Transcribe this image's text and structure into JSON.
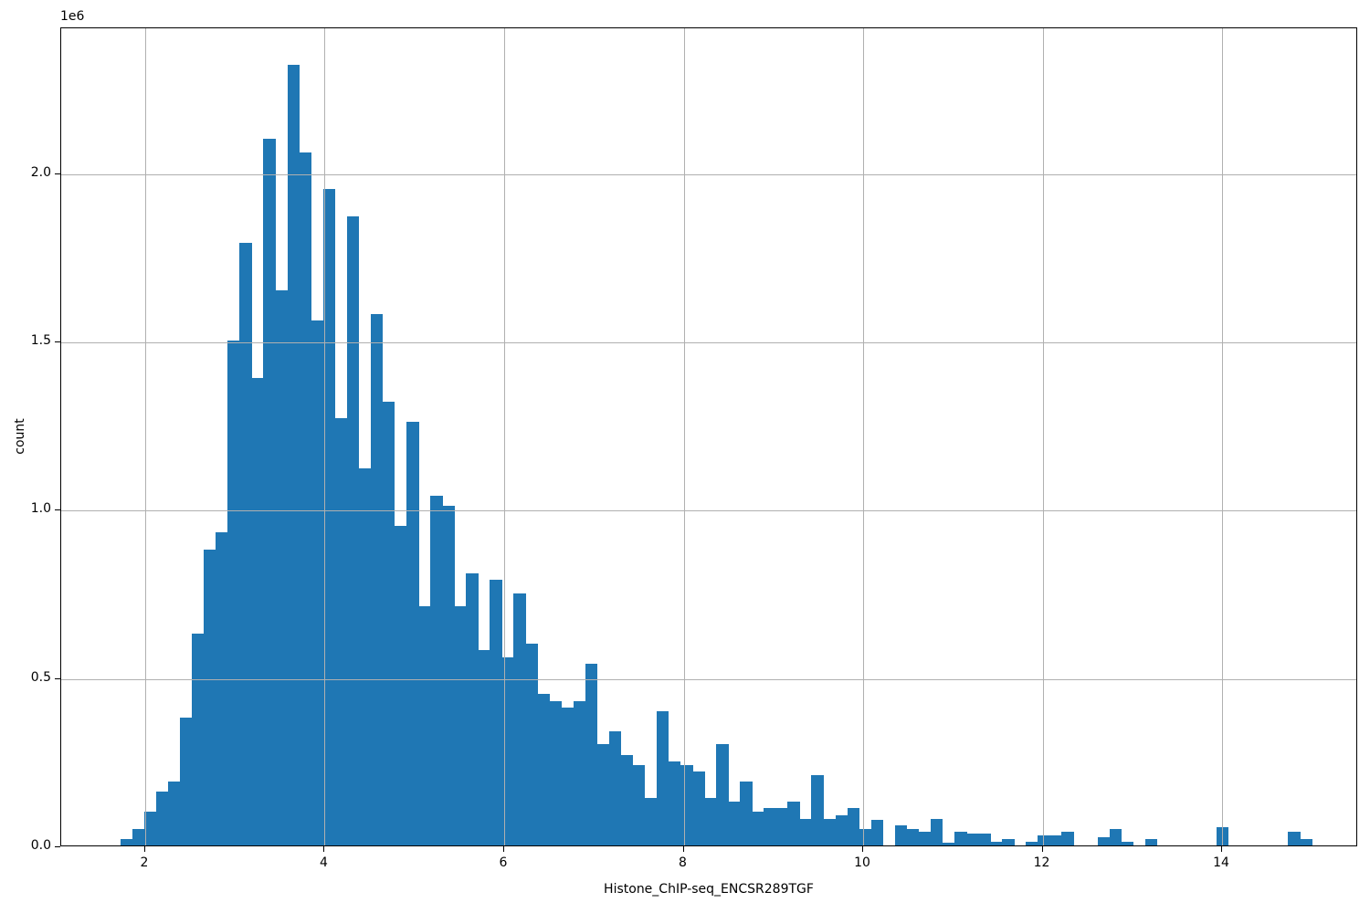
{
  "figure": {
    "background": "#ffffff",
    "bar_color": "#1f77b4",
    "grid_color": "#b0b0b0",
    "spine_color": "#000000",
    "text_color": "#000000"
  },
  "chart_data": {
    "type": "bar",
    "subtype": "histogram",
    "title": "",
    "xlabel": "Histone_ChIP-seq_ENCSR289TGF",
    "ylabel": "count",
    "y_offset_label": "1e6",
    "grid": true,
    "legend": false,
    "xlim": [
      1.064,
      15.516
    ],
    "ylim": [
      0,
      2434000
    ],
    "x_ticks": [
      2,
      4,
      6,
      8,
      10,
      12,
      14
    ],
    "x_tick_labels": [
      "2",
      "4",
      "6",
      "8",
      "10",
      "12",
      "14"
    ],
    "y_ticks": [
      0,
      500000,
      1000000,
      1500000,
      2000000
    ],
    "y_tick_labels": [
      "0.0",
      "0.5",
      "1.0",
      "1.5",
      "2.0"
    ],
    "bin_start": 1.725,
    "bin_width": 0.13275,
    "counts": [
      20000,
      50000,
      100000,
      160000,
      190000,
      380000,
      630000,
      880000,
      930000,
      1500000,
      1790000,
      1390000,
      2100000,
      1650000,
      2320000,
      2060000,
      1560000,
      1950000,
      1270000,
      1870000,
      1120000,
      1580000,
      1320000,
      950000,
      1260000,
      710000,
      1040000,
      1010000,
      710000,
      810000,
      580000,
      790000,
      560000,
      750000,
      600000,
      450000,
      430000,
      410000,
      430000,
      540000,
      300000,
      340000,
      270000,
      240000,
      140000,
      400000,
      250000,
      240000,
      220000,
      140000,
      300000,
      130000,
      190000,
      100000,
      110000,
      110000,
      130000,
      80000,
      210000,
      80000,
      90000,
      110000,
      50000,
      75000,
      0,
      60000,
      50000,
      40000,
      80000,
      8000,
      40000,
      35000,
      35000,
      10000,
      20000,
      0,
      10000,
      30000,
      30000,
      40000,
      0,
      0,
      25000,
      50000,
      10000,
      0,
      20000,
      0,
      0,
      0,
      0,
      0,
      55000,
      0,
      0,
      0,
      0,
      0,
      40000,
      18000
    ]
  }
}
